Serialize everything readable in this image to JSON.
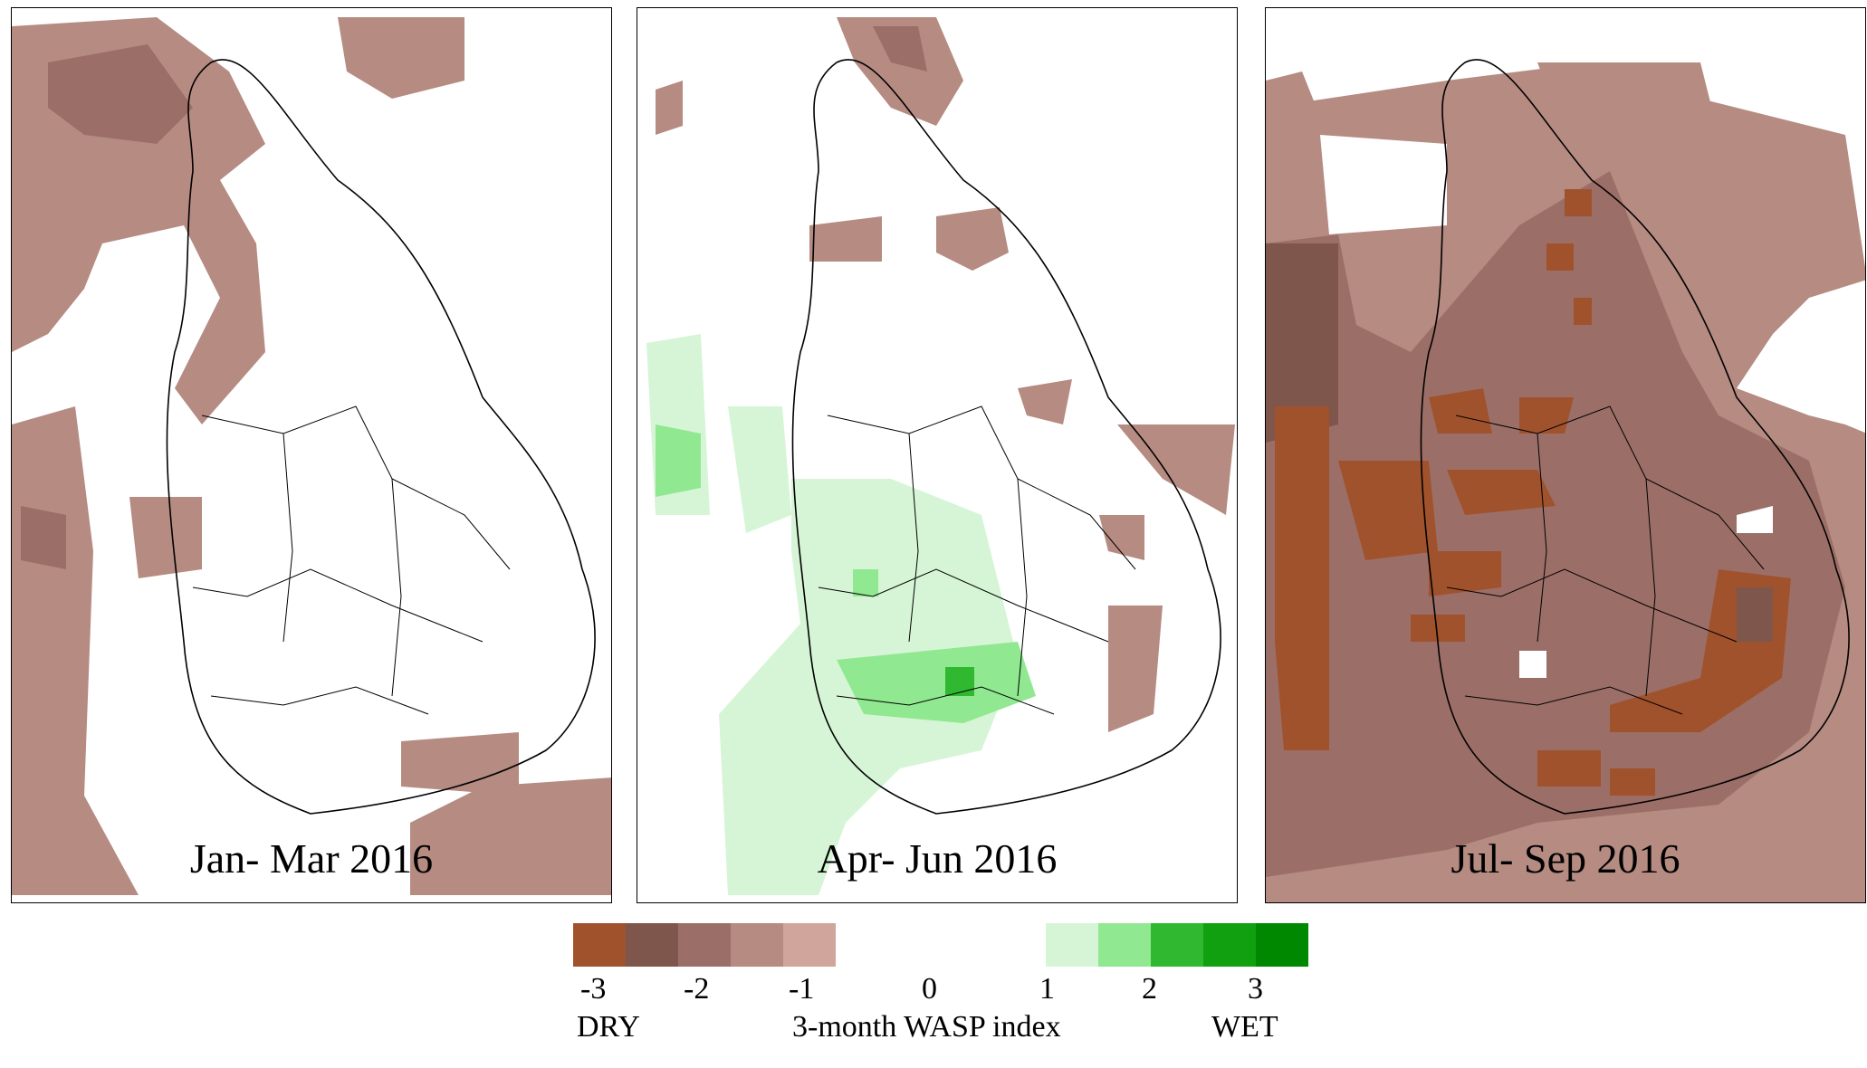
{
  "panels": [
    {
      "title": "Jan- Mar 2016"
    },
    {
      "title": "Apr- Jun 2016"
    },
    {
      "title": "Jul- Sep 2016"
    }
  ],
  "legend": {
    "colors": {
      "dry": [
        "#a0522d",
        "#7f564b",
        "#9b6f67",
        "#b58b82",
        "#d0a69c"
      ],
      "wet": [
        "#d6f5d6",
        "#90e890",
        "#30b830",
        "#10a010",
        "#008800"
      ]
    },
    "ticks": [
      "-3",
      "-2",
      "-1",
      "0",
      "1",
      "2",
      "3"
    ],
    "dry_label": "DRY",
    "index_label": "3-month WASP index",
    "wet_label": "WET"
  }
}
